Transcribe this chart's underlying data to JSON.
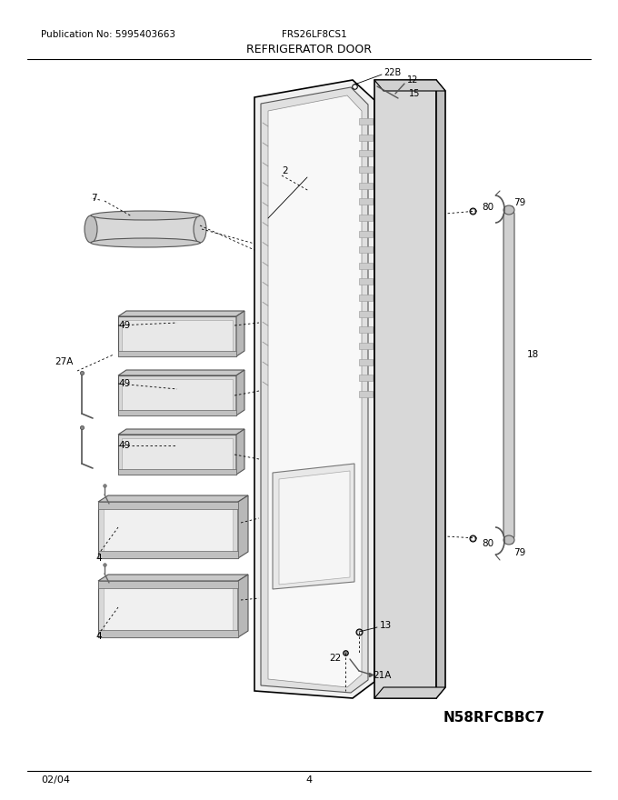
{
  "title": "REFRIGERATOR DOOR",
  "pub_no": "Publication No: 5995403663",
  "model": "FRS26LF8CS1",
  "footer_left": "02/04",
  "footer_center": "4",
  "part_id": "N58RFCBBC7",
  "bg_color": "#ffffff",
  "lc": "#000000",
  "gray1": "#aaaaaa",
  "gray2": "#cccccc",
  "gray3": "#e8e8e8",
  "figsize": [
    6.8,
    8.8
  ],
  "dpi": 100
}
